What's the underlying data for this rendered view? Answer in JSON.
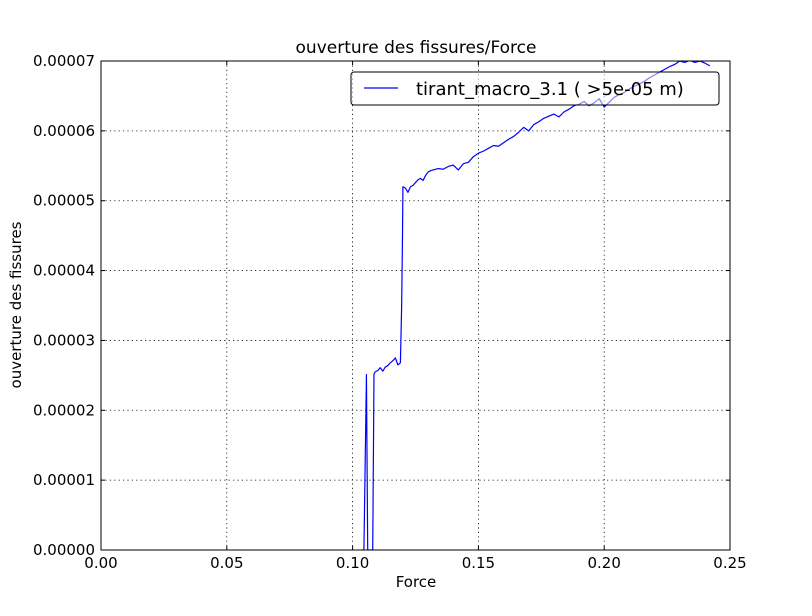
{
  "chart_data": {
    "type": "line",
    "title": "ouverture des fissures/Force",
    "xlabel": "Force",
    "ylabel": "ouverture des fissures",
    "xlim": [
      0.0,
      0.25
    ],
    "ylim": [
      0.0,
      7e-05
    ],
    "xticks": [
      "0.00",
      "0.05",
      "0.10",
      "0.15",
      "0.20",
      "0.25"
    ],
    "yticks": [
      "0.00000",
      "0.00001",
      "0.00002",
      "0.00003",
      "0.00004",
      "0.00005",
      "0.00006",
      "0.00007"
    ],
    "grid": true,
    "legend_position": "top-right",
    "series": [
      {
        "name": "tirant_macro_3.1 ( >5e-05 m)",
        "color": "#0000ff",
        "x": [
          0.1035,
          0.1045,
          0.1055,
          0.106,
          0.1063,
          0.1065,
          0.1068,
          0.1072,
          0.1075,
          0.108,
          0.1085,
          0.109,
          0.11,
          0.111,
          0.112,
          0.113,
          0.114,
          0.115,
          0.116,
          0.117,
          0.118,
          0.119,
          0.1195,
          0.1198,
          0.12,
          0.121,
          0.122,
          0.123,
          0.124,
          0.125,
          0.126,
          0.127,
          0.128,
          0.129,
          0.13,
          0.131,
          0.132,
          0.134,
          0.136,
          0.138,
          0.14,
          0.142,
          0.144,
          0.146,
          0.148,
          0.15,
          0.152,
          0.154,
          0.156,
          0.158,
          0.16,
          0.162,
          0.164,
          0.166,
          0.168,
          0.17,
          0.172,
          0.174,
          0.176,
          0.178,
          0.18,
          0.182,
          0.184,
          0.186,
          0.188,
          0.19,
          0.192,
          0.194,
          0.196,
          0.198,
          0.2,
          0.202,
          0.204,
          0.206,
          0.208,
          0.21,
          0.212,
          0.214,
          0.216,
          0.218,
          0.22,
          0.222,
          0.224,
          0.226,
          0.228,
          0.23,
          0.232,
          0.234,
          0.236,
          0.238,
          0.24,
          0.241,
          0.242
        ],
        "y": [
          0.0,
          0.0,
          2.51e-05,
          0.0,
          0.0,
          0.0,
          0.0,
          0.0,
          0.0,
          0.0,
          2.52e-05,
          2.55e-05,
          2.57e-05,
          2.61e-05,
          2.56e-05,
          2.62e-05,
          2.64e-05,
          2.68e-05,
          2.71e-05,
          2.75e-05,
          2.65e-05,
          2.68e-05,
          3.5e-05,
          4.4e-05,
          5.2e-05,
          5.18e-05,
          5.12e-05,
          5.2e-05,
          5.22e-05,
          5.26e-05,
          5.3e-05,
          5.32e-05,
          5.29e-05,
          5.36e-05,
          5.41e-05,
          5.43e-05,
          5.44e-05,
          5.46e-05,
          5.45e-05,
          5.49e-05,
          5.51e-05,
          5.44e-05,
          5.53e-05,
          5.55e-05,
          5.63e-05,
          5.68e-05,
          5.71e-05,
          5.75e-05,
          5.79e-05,
          5.78e-05,
          5.83e-05,
          5.88e-05,
          5.92e-05,
          5.98e-05,
          6.05e-05,
          6e-05,
          6.09e-05,
          6.13e-05,
          6.18e-05,
          6.21e-05,
          6.24e-05,
          6.2e-05,
          6.27e-05,
          6.31e-05,
          6.36e-05,
          6.38e-05,
          6.42e-05,
          6.36e-05,
          6.4e-05,
          6.46e-05,
          6.34e-05,
          6.41e-05,
          6.48e-05,
          6.52e-05,
          6.55e-05,
          6.6e-05,
          6.64e-05,
          6.67e-05,
          6.71e-05,
          6.76e-05,
          6.8e-05,
          6.84e-05,
          6.88e-05,
          6.92e-05,
          6.95e-05,
          7e-05,
          6.98e-05,
          7.01e-05,
          6.98e-05,
          7e-05,
          6.97e-05,
          6.95e-05,
          6.93e-05
        ]
      }
    ]
  }
}
